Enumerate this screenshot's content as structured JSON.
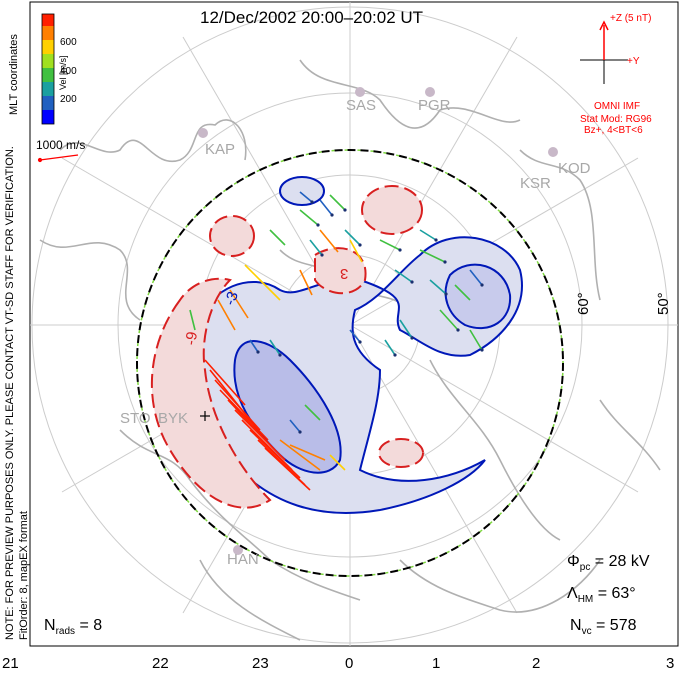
{
  "title": "12/Dec/2002 20:00–20:02 UT",
  "side_notes": {
    "note": "NOTE: FOR PREVIEW PURPOSES ONLY. PLEASE CONTACT VT-SD STAFF FOR VERIFICATION.",
    "fit": "FitOrder: 8, mapEX format",
    "coords": "MLT coordinates"
  },
  "colorbar": {
    "label": "Vel [m/s]",
    "ticks": [
      "600",
      "400",
      "200"
    ],
    "colors": [
      "#0000ff",
      "#2060c0",
      "#1aa0a0",
      "#40c040",
      "#a0e020",
      "#ffd000",
      "#ff8000",
      "#ff2000"
    ]
  },
  "scale_vector": {
    "label": "1000 m/s"
  },
  "imf": {
    "z_label": "+Z (5 nT)",
    "y_label": "+Y",
    "source": "OMNI IMF",
    "model": "Stat Mod: RG96",
    "condition": "Bz+, 4<BT<6"
  },
  "stations": [
    "SAS",
    "PGR",
    "KAP",
    "KSR",
    "KOD",
    "STO",
    "BYK",
    "HAN"
  ],
  "contour_labels": [
    "-3",
    "-9",
    "3"
  ],
  "lat_labels": [
    "60°",
    "50°"
  ],
  "stats": {
    "phi_pc": "= 28 kV",
    "lambda_hm": "= 63°",
    "n_vc": "= 578",
    "n_rads": "= 8"
  },
  "mlt_labels": [
    "21",
    "22",
    "23",
    "0",
    "1",
    "2",
    "3"
  ]
}
